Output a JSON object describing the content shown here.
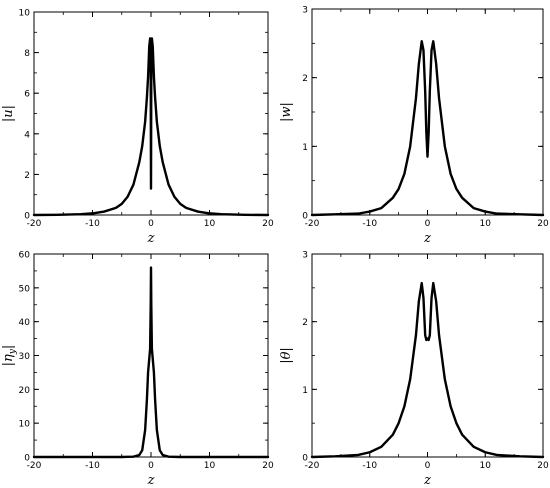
{
  "chart_data": [
    {
      "type": "line",
      "xlabel": "z",
      "ylabel": "|u|",
      "xlim": [
        -20,
        20
      ],
      "ylim": [
        0,
        10
      ],
      "xticks": [
        -20,
        -10,
        0,
        10,
        20
      ],
      "yticks": [
        0,
        2,
        4,
        6,
        8,
        10
      ],
      "grid": false,
      "series": [
        {
          "x": [
            -20,
            -16,
            -12,
            -10,
            -8,
            -6,
            -5,
            -4,
            -3,
            -2,
            -1.5,
            -1,
            -0.7,
            -0.5,
            -0.3,
            -0.15,
            -0.05,
            0,
            0.05,
            0.15,
            0.3,
            0.5,
            0.7,
            1,
            1.5,
            2,
            3,
            4,
            5,
            6,
            8,
            10,
            12,
            16,
            20
          ],
          "y": [
            0,
            0.01,
            0.04,
            0.08,
            0.17,
            0.35,
            0.55,
            0.9,
            1.5,
            2.6,
            3.4,
            4.6,
            5.8,
            6.8,
            8.3,
            8.7,
            7.0,
            1.3,
            7.0,
            8.7,
            8.3,
            6.8,
            5.8,
            4.6,
            3.4,
            2.6,
            1.5,
            0.9,
            0.55,
            0.35,
            0.17,
            0.08,
            0.04,
            0.01,
            0
          ]
        }
      ]
    },
    {
      "type": "line",
      "xlabel": "z",
      "ylabel": "|w|",
      "xlim": [
        -20,
        20
      ],
      "ylim": [
        0,
        3
      ],
      "xticks": [
        -20,
        -10,
        0,
        10,
        20
      ],
      "yticks": [
        0,
        1,
        2,
        3
      ],
      "grid": false,
      "series": [
        {
          "x": [
            -20,
            -16,
            -12,
            -10,
            -8,
            -6,
            -5,
            -4,
            -3,
            -2,
            -1.5,
            -1,
            -0.7,
            -0.4,
            -0.2,
            0,
            0.2,
            0.4,
            0.7,
            1,
            1.5,
            2,
            3,
            4,
            5,
            6,
            8,
            10,
            12,
            16,
            20
          ],
          "y": [
            0,
            0.01,
            0.02,
            0.05,
            0.1,
            0.25,
            0.38,
            0.6,
            1.0,
            1.7,
            2.2,
            2.53,
            2.4,
            1.8,
            1.2,
            0.85,
            1.2,
            1.8,
            2.4,
            2.53,
            2.2,
            1.7,
            1.0,
            0.6,
            0.38,
            0.25,
            0.1,
            0.05,
            0.02,
            0.01,
            0
          ]
        }
      ]
    },
    {
      "type": "line",
      "xlabel": "z",
      "ylabel": "|η_y|",
      "xlim": [
        -20,
        20
      ],
      "ylim": [
        0,
        60
      ],
      "xticks": [
        -20,
        -10,
        0,
        10,
        20
      ],
      "yticks": [
        0,
        10,
        20,
        30,
        40,
        50,
        60
      ],
      "grid": false,
      "series": [
        {
          "x": [
            -20,
            -10,
            -5,
            -3,
            -2,
            -1.5,
            -1,
            -0.7,
            -0.5,
            -0.3,
            -0.15,
            -0.05,
            0,
            0.05,
            0.15,
            0.3,
            0.5,
            0.7,
            1,
            1.5,
            2,
            3,
            5,
            10,
            20
          ],
          "y": [
            0,
            0,
            0,
            0.1,
            0.6,
            2.0,
            8.0,
            17,
            25,
            29,
            32,
            45,
            56,
            45,
            32,
            29,
            25,
            17,
            8.0,
            2.0,
            0.6,
            0.1,
            0,
            0,
            0
          ]
        }
      ]
    },
    {
      "type": "line",
      "xlabel": "z",
      "ylabel": "|θ|",
      "xlim": [
        -20,
        20
      ],
      "ylim": [
        0,
        3
      ],
      "xticks": [
        -20,
        -10,
        0,
        10,
        20
      ],
      "yticks": [
        0,
        1,
        2,
        3
      ],
      "grid": false,
      "series": [
        {
          "x": [
            -20,
            -16,
            -12,
            -10,
            -8,
            -6,
            -5,
            -4,
            -3,
            -2,
            -1.5,
            -1,
            -0.7,
            -0.4,
            -0.2,
            0,
            0.2,
            0.4,
            0.7,
            1,
            1.5,
            2,
            3,
            4,
            5,
            6,
            8,
            10,
            12,
            16,
            20
          ],
          "y": [
            0,
            0.01,
            0.03,
            0.07,
            0.15,
            0.33,
            0.5,
            0.75,
            1.15,
            1.8,
            2.3,
            2.57,
            2.35,
            1.8,
            1.73,
            1.75,
            1.73,
            1.8,
            2.35,
            2.57,
            2.3,
            1.8,
            1.15,
            0.75,
            0.5,
            0.33,
            0.15,
            0.07,
            0.03,
            0.01,
            0
          ]
        }
      ]
    }
  ]
}
